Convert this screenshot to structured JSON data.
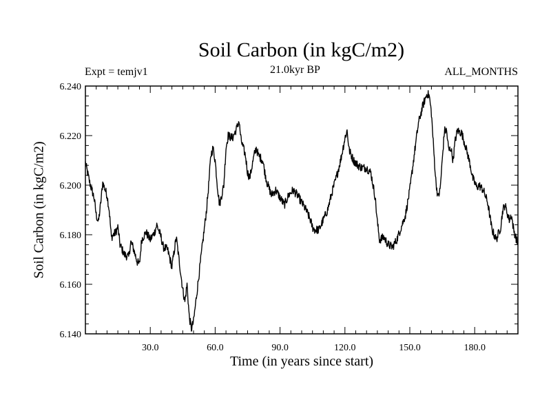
{
  "header": {
    "title": "Soil Carbon (in kgC/m2)",
    "expt": "Expt = temjv1",
    "subtitle": "21.0kyr BP",
    "months": "ALL_MONTHS"
  },
  "chart_data": {
    "type": "line",
    "title": "Soil Carbon (in kgC/m2)",
    "xlabel": "Time (in years since start)",
    "ylabel": "Soil Carbon (in kgC/m2)",
    "xlim": [
      0,
      200
    ],
    "ylim": [
      6.14,
      6.24
    ],
    "xticks": [
      30,
      60,
      90,
      120,
      150,
      180
    ],
    "xtick_labels": [
      "30.0",
      "60.0",
      "90.0",
      "120.0",
      "150.0",
      "180.0"
    ],
    "yticks": [
      6.14,
      6.16,
      6.18,
      6.2,
      6.22,
      6.24
    ],
    "ytick_labels": [
      "6.140",
      "6.160",
      "6.180",
      "6.200",
      "6.220",
      "6.240"
    ],
    "series": [
      {
        "name": "Soil Carbon",
        "x": [
          0,
          2,
          4,
          5,
          6,
          7,
          8,
          10,
          11,
          12,
          14,
          15,
          16,
          18,
          20,
          21,
          22,
          24,
          25,
          26,
          28,
          30,
          32,
          33,
          35,
          36,
          38,
          40,
          42,
          43,
          44,
          45,
          46,
          47,
          48,
          49,
          50,
          52,
          54,
          56,
          57,
          58,
          59,
          60,
          61,
          62,
          64,
          65,
          66,
          68,
          70,
          71,
          72,
          74,
          75,
          76,
          78,
          79,
          80,
          82,
          83,
          84,
          86,
          88,
          90,
          92,
          94,
          96,
          98,
          100,
          102,
          104,
          105,
          106,
          108,
          110,
          112,
          114,
          116,
          118,
          120,
          121,
          122,
          124,
          126,
          128,
          130,
          132,
          134,
          135,
          136,
          138,
          140,
          142,
          144,
          146,
          148,
          150,
          152,
          154,
          156,
          158,
          159,
          160,
          161,
          162,
          163,
          164,
          165,
          166,
          167,
          168,
          169,
          170,
          171,
          172,
          174,
          176,
          178,
          179,
          180,
          181,
          182,
          184,
          186,
          188,
          190,
          192,
          193,
          194,
          196,
          197,
          198,
          200
        ],
        "values": [
          6.209,
          6.201,
          6.195,
          6.188,
          6.185,
          6.192,
          6.201,
          6.196,
          6.19,
          6.179,
          6.181,
          6.183,
          6.176,
          6.172,
          6.171,
          6.177,
          6.175,
          6.169,
          6.168,
          6.178,
          6.181,
          6.178,
          6.181,
          6.184,
          6.179,
          6.175,
          6.174,
          6.167,
          6.179,
          6.172,
          6.165,
          6.158,
          6.153,
          6.16,
          6.147,
          6.142,
          6.145,
          6.16,
          6.175,
          6.19,
          6.2,
          6.212,
          6.215,
          6.21,
          6.2,
          6.192,
          6.2,
          6.215,
          6.22,
          6.219,
          6.223,
          6.226,
          6.218,
          6.212,
          6.205,
          6.203,
          6.212,
          6.215,
          6.212,
          6.21,
          6.205,
          6.201,
          6.196,
          6.198,
          6.195,
          6.192,
          6.196,
          6.198,
          6.196,
          6.193,
          6.19,
          6.186,
          6.183,
          6.182,
          6.182,
          6.186,
          6.19,
          6.197,
          6.203,
          6.21,
          6.219,
          6.222,
          6.214,
          6.21,
          6.208,
          6.207,
          6.207,
          6.205,
          6.195,
          6.185,
          6.178,
          6.179,
          6.176,
          6.175,
          6.178,
          6.183,
          6.188,
          6.198,
          6.212,
          6.225,
          6.232,
          6.237,
          6.236,
          6.229,
          6.215,
          6.202,
          6.195,
          6.198,
          6.21,
          6.222,
          6.222,
          6.214,
          6.215,
          6.21,
          6.218,
          6.222,
          6.221,
          6.215,
          6.208,
          6.203,
          6.201,
          6.199,
          6.2,
          6.198,
          6.193,
          6.182,
          6.178,
          6.183,
          6.19,
          6.192,
          6.186,
          6.188,
          6.182,
          6.176
        ]
      }
    ]
  }
}
